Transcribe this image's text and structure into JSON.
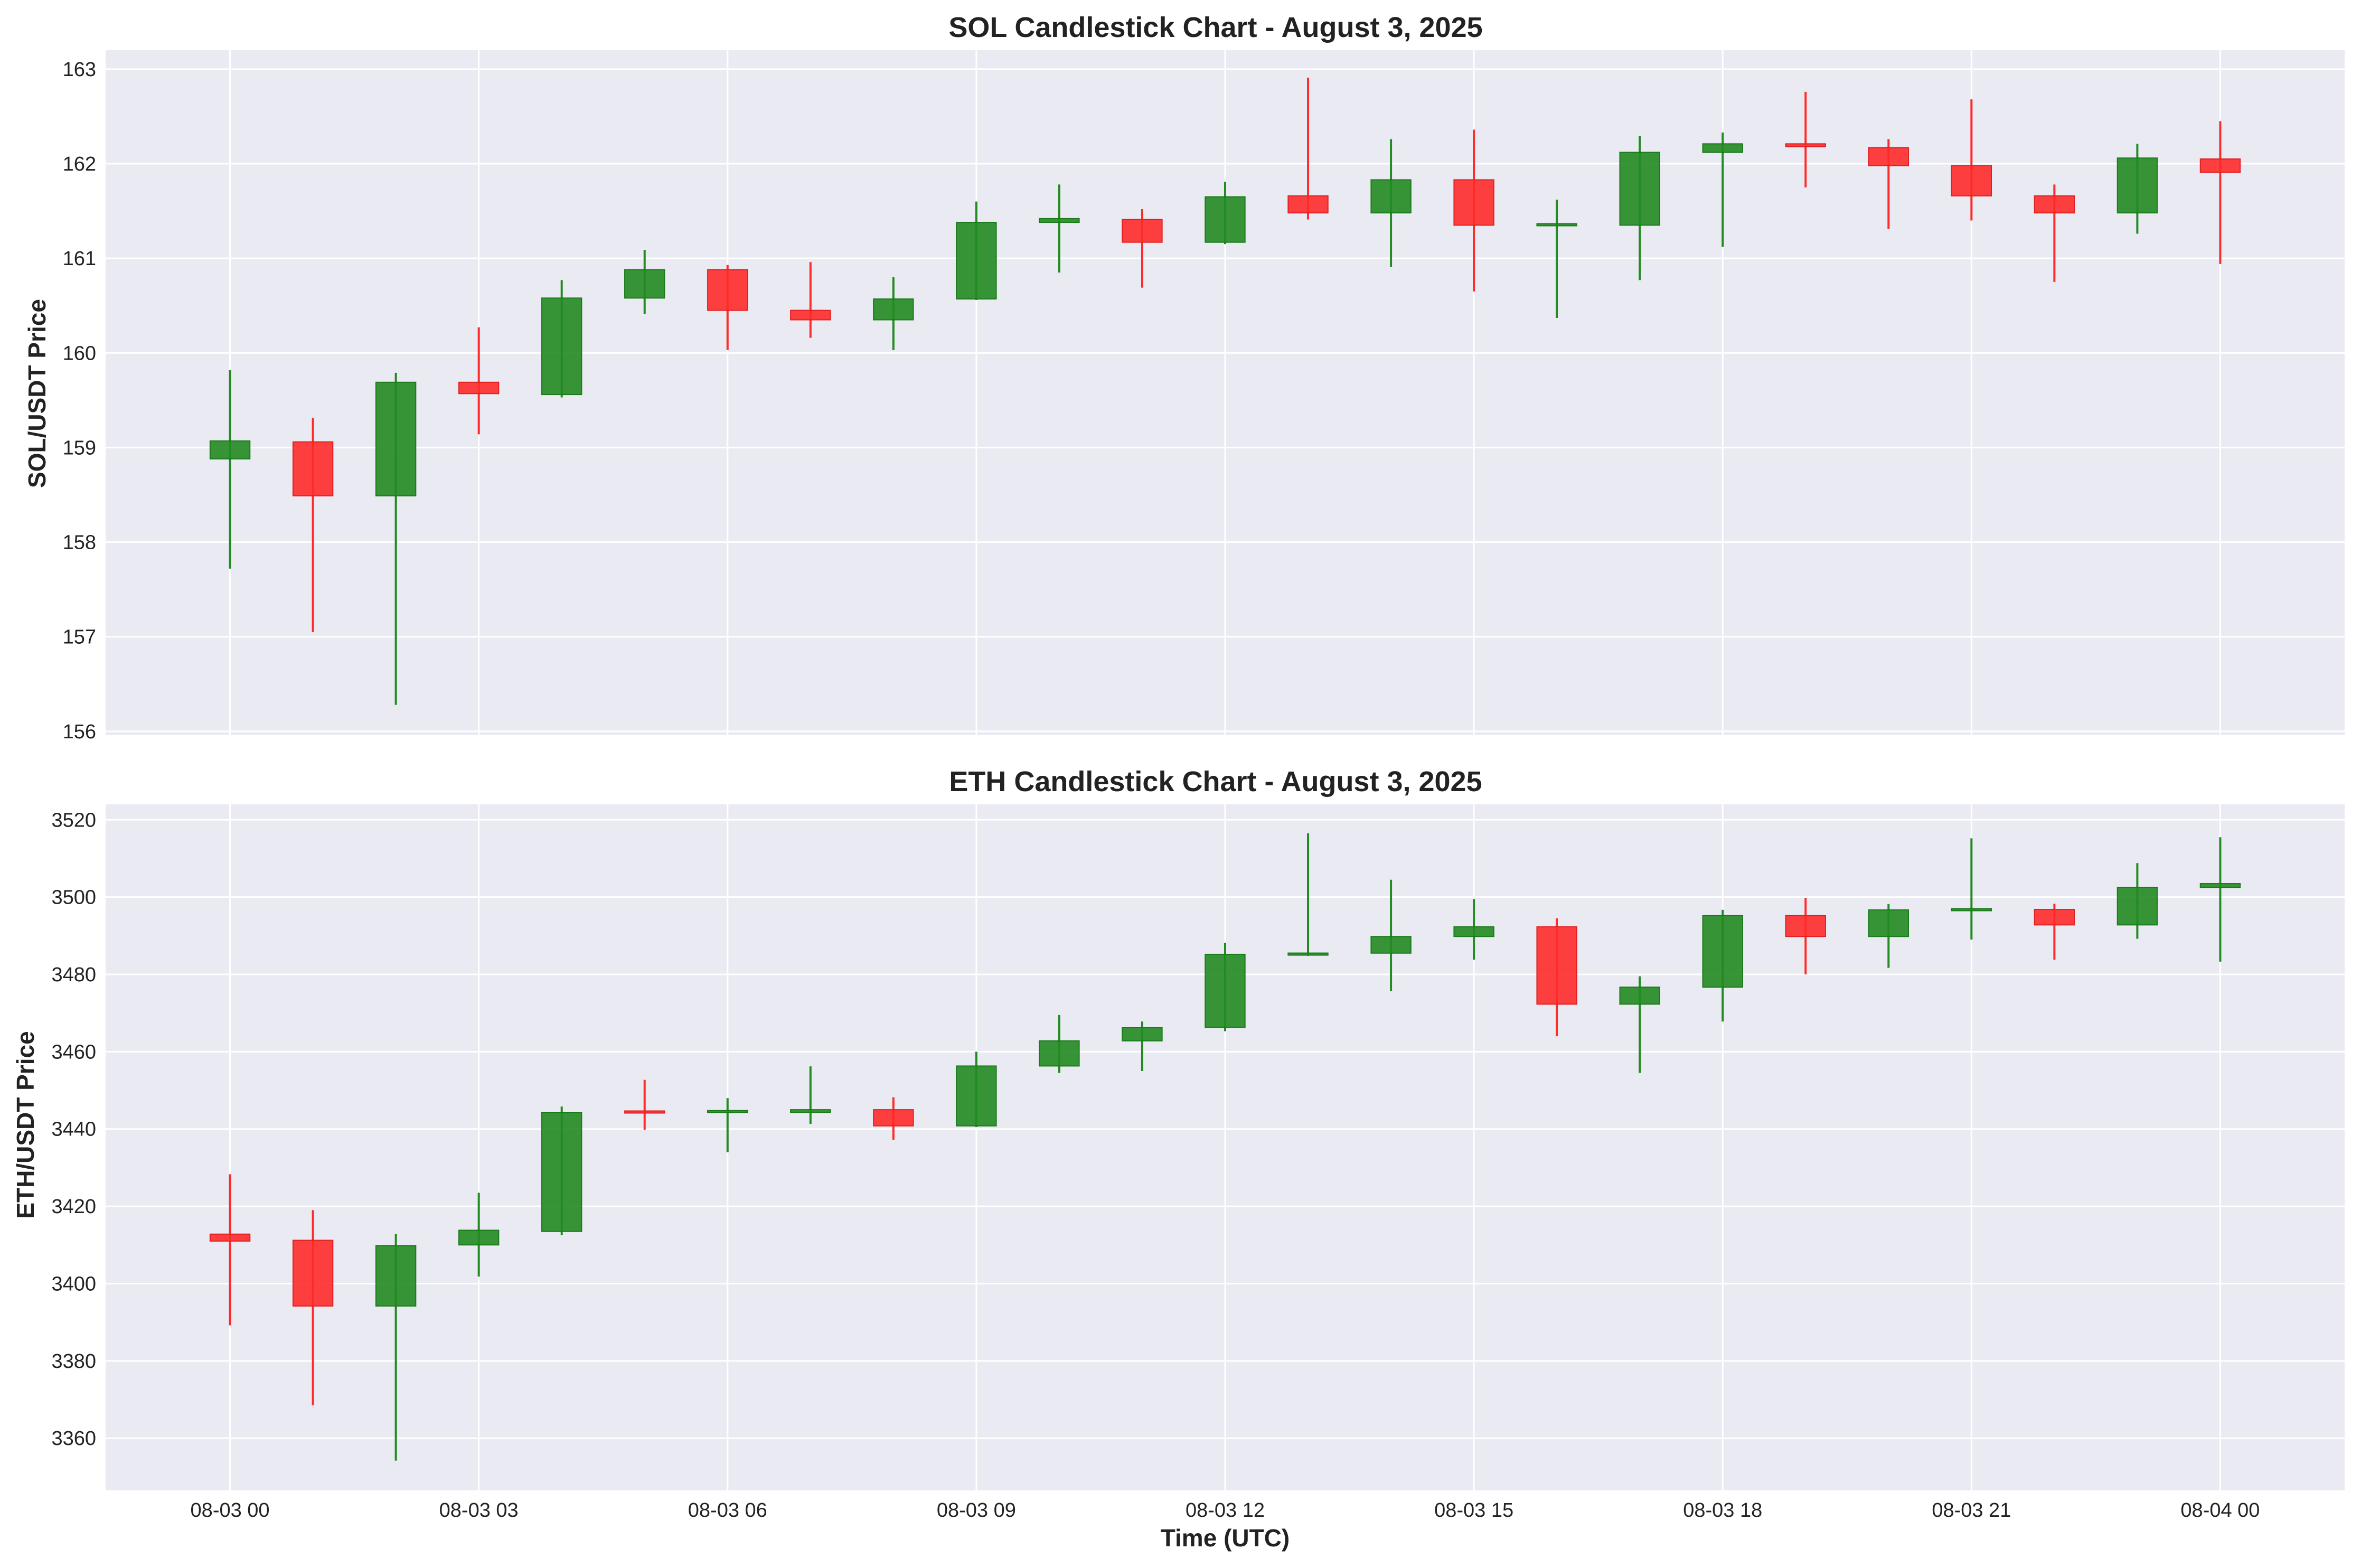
{
  "colors": {
    "figure_bg": "#ffffff",
    "plot_bg": "#eaeaf2",
    "grid": "#ffffff",
    "up": "#228b22",
    "down": "#ff2b2b",
    "up_edge": "#1a7a1a",
    "down_edge": "#e02020"
  },
  "shared_x": {
    "label": "Time (UTC)",
    "ticks": [
      "08-03 00",
      "08-03 03",
      "08-03 06",
      "08-03 09",
      "08-03 12",
      "08-03 15",
      "08-03 18",
      "08-03 21",
      "08-04 00"
    ],
    "tick_hours": [
      0,
      3,
      6,
      9,
      12,
      15,
      18,
      21,
      24
    ],
    "xlim_hours": [
      -1.5,
      25.5
    ]
  },
  "chart_data": [
    {
      "type": "candlestick",
      "title": "SOL Candlestick Chart - August 3, 2025",
      "ylabel": "SOL/USDT Price",
      "ylim": [
        155.96,
        163.2
      ],
      "yticks": [
        156,
        157,
        158,
        159,
        160,
        161,
        162,
        163
      ],
      "grid": true,
      "candles": [
        {
          "hour": 0,
          "open": 158.88,
          "high": 159.82,
          "low": 157.72,
          "close": 159.07
        },
        {
          "hour": 1,
          "open": 159.06,
          "high": 159.31,
          "low": 157.05,
          "close": 158.49
        },
        {
          "hour": 2,
          "open": 158.49,
          "high": 159.79,
          "low": 156.28,
          "close": 159.69
        },
        {
          "hour": 3,
          "open": 159.69,
          "high": 160.27,
          "low": 159.14,
          "close": 159.57
        },
        {
          "hour": 4,
          "open": 159.56,
          "high": 160.77,
          "low": 159.53,
          "close": 160.58
        },
        {
          "hour": 5,
          "open": 160.58,
          "high": 161.09,
          "low": 160.41,
          "close": 160.88
        },
        {
          "hour": 6,
          "open": 160.88,
          "high": 160.93,
          "low": 160.03,
          "close": 160.45
        },
        {
          "hour": 7,
          "open": 160.45,
          "high": 160.96,
          "low": 160.16,
          "close": 160.35
        },
        {
          "hour": 8,
          "open": 160.35,
          "high": 160.8,
          "low": 160.03,
          "close": 160.57
        },
        {
          "hour": 9,
          "open": 160.57,
          "high": 161.6,
          "low": 160.56,
          "close": 161.38
        },
        {
          "hour": 10,
          "open": 161.38,
          "high": 161.78,
          "low": 160.85,
          "close": 161.42
        },
        {
          "hour": 11,
          "open": 161.41,
          "high": 161.52,
          "low": 160.69,
          "close": 161.17
        },
        {
          "hour": 12,
          "open": 161.17,
          "high": 161.81,
          "low": 161.15,
          "close": 161.65
        },
        {
          "hour": 13,
          "open": 161.66,
          "high": 162.91,
          "low": 161.41,
          "close": 161.48
        },
        {
          "hour": 14,
          "open": 161.48,
          "high": 162.26,
          "low": 160.91,
          "close": 161.83
        },
        {
          "hour": 15,
          "open": 161.83,
          "high": 162.36,
          "low": 160.65,
          "close": 161.35
        },
        {
          "hour": 16,
          "open": 161.35,
          "high": 161.62,
          "low": 160.37,
          "close": 161.36
        },
        {
          "hour": 17,
          "open": 161.35,
          "high": 162.29,
          "low": 160.77,
          "close": 162.12
        },
        {
          "hour": 18,
          "open": 162.12,
          "high": 162.33,
          "low": 161.12,
          "close": 162.21
        },
        {
          "hour": 19,
          "open": 162.21,
          "high": 162.76,
          "low": 161.75,
          "close": 162.18
        },
        {
          "hour": 20,
          "open": 162.17,
          "high": 162.26,
          "low": 161.31,
          "close": 161.98
        },
        {
          "hour": 21,
          "open": 161.98,
          "high": 162.68,
          "low": 161.4,
          "close": 161.66
        },
        {
          "hour": 22,
          "open": 161.66,
          "high": 161.78,
          "low": 160.75,
          "close": 161.48
        },
        {
          "hour": 23,
          "open": 161.48,
          "high": 162.21,
          "low": 161.26,
          "close": 162.06
        },
        {
          "hour": 24,
          "open": 162.05,
          "high": 162.45,
          "low": 160.94,
          "close": 161.91
        }
      ]
    },
    {
      "type": "candlestick",
      "title": "ETH Candlestick Chart - August 3, 2025",
      "ylabel": "ETH/USDT Price",
      "ylim": [
        3346.5,
        3524
      ],
      "yticks": [
        3360,
        3380,
        3400,
        3420,
        3440,
        3460,
        3480,
        3500,
        3520
      ],
      "grid": true,
      "candles": [
        {
          "hour": 0,
          "open": 3412.8,
          "high": 3428.3,
          "low": 3389.2,
          "close": 3411.0
        },
        {
          "hour": 1,
          "open": 3411.2,
          "high": 3419.0,
          "low": 3368.5,
          "close": 3394.2
        },
        {
          "hour": 2,
          "open": 3394.2,
          "high": 3412.8,
          "low": 3354.2,
          "close": 3409.8
        },
        {
          "hour": 3,
          "open": 3410.0,
          "high": 3423.5,
          "low": 3401.8,
          "close": 3413.8
        },
        {
          "hour": 4,
          "open": 3413.5,
          "high": 3445.8,
          "low": 3412.5,
          "close": 3444.2
        },
        {
          "hour": 5,
          "open": 3444.5,
          "high": 3452.7,
          "low": 3439.8,
          "close": 3444.3
        },
        {
          "hour": 6,
          "open": 3444.3,
          "high": 3448.0,
          "low": 3434.0,
          "close": 3444.7
        },
        {
          "hour": 7,
          "open": 3444.3,
          "high": 3456.2,
          "low": 3441.3,
          "close": 3445.0
        },
        {
          "hour": 8,
          "open": 3445.0,
          "high": 3448.2,
          "low": 3437.2,
          "close": 3440.8
        },
        {
          "hour": 9,
          "open": 3440.8,
          "high": 3460.0,
          "low": 3440.5,
          "close": 3456.3
        },
        {
          "hour": 10,
          "open": 3456.3,
          "high": 3469.5,
          "low": 3454.5,
          "close": 3462.8
        },
        {
          "hour": 11,
          "open": 3462.8,
          "high": 3467.8,
          "low": 3455.0,
          "close": 3466.2
        },
        {
          "hour": 12,
          "open": 3466.3,
          "high": 3488.2,
          "low": 3465.3,
          "close": 3485.2
        },
        {
          "hour": 13,
          "open": 3485.0,
          "high": 3516.5,
          "low": 3484.8,
          "close": 3485.5
        },
        {
          "hour": 14,
          "open": 3485.5,
          "high": 3504.5,
          "low": 3475.7,
          "close": 3489.8
        },
        {
          "hour": 15,
          "open": 3489.8,
          "high": 3499.5,
          "low": 3483.8,
          "close": 3492.3
        },
        {
          "hour": 16,
          "open": 3492.3,
          "high": 3494.5,
          "low": 3464.0,
          "close": 3472.3
        },
        {
          "hour": 17,
          "open": 3472.3,
          "high": 3479.5,
          "low": 3454.5,
          "close": 3476.7
        },
        {
          "hour": 18,
          "open": 3476.7,
          "high": 3496.7,
          "low": 3467.8,
          "close": 3495.2
        },
        {
          "hour": 19,
          "open": 3495.2,
          "high": 3499.8,
          "low": 3480.0,
          "close": 3489.8
        },
        {
          "hour": 20,
          "open": 3489.8,
          "high": 3498.2,
          "low": 3481.7,
          "close": 3496.7
        },
        {
          "hour": 21,
          "open": 3496.5,
          "high": 3515.2,
          "low": 3489.0,
          "close": 3497.0
        },
        {
          "hour": 22,
          "open": 3496.8,
          "high": 3498.3,
          "low": 3483.8,
          "close": 3492.8
        },
        {
          "hour": 23,
          "open": 3492.8,
          "high": 3508.8,
          "low": 3489.2,
          "close": 3502.5
        },
        {
          "hour": 24,
          "open": 3502.5,
          "high": 3515.5,
          "low": 3483.3,
          "close": 3503.5
        }
      ]
    }
  ]
}
